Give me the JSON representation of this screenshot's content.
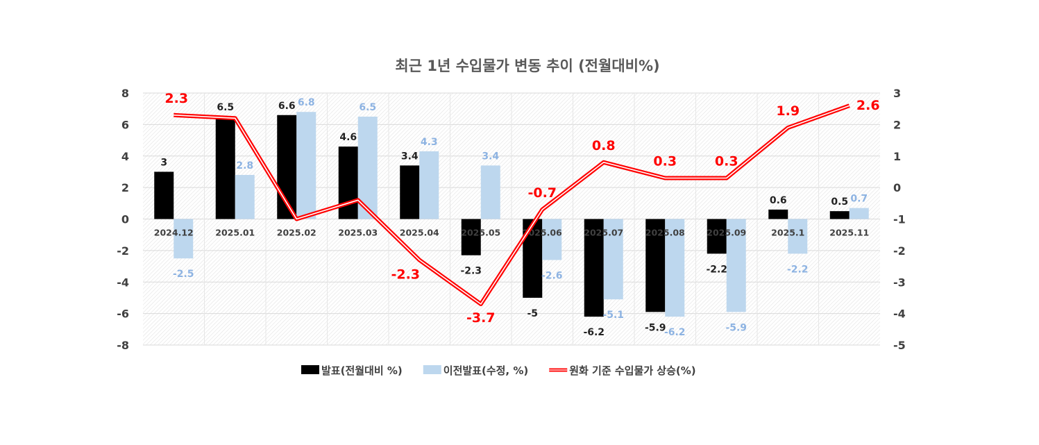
{
  "chart_data": {
    "type": "bar+line",
    "title": "최근 1년 수입물가 변동 추이 (전월대비%)",
    "categories": [
      "2024.12",
      "2025.01",
      "2025.02",
      "2025.03",
      "2025.04",
      "2025.05",
      "2025.06",
      "2025.07",
      "2025.08",
      "2025.09",
      "2025.1",
      "2025.11"
    ],
    "series": [
      {
        "name": "발표(전월대비 %)",
        "type": "bar",
        "axis": "left",
        "color": "#000000",
        "label_color": "#222222",
        "values": [
          3,
          6.5,
          6.6,
          4.6,
          3.4,
          -2.3,
          -5,
          -6.2,
          -5.9,
          -2.2,
          0.6,
          0.5
        ]
      },
      {
        "name": "이전발표(수정, %)",
        "type": "bar",
        "axis": "left",
        "color": "#bdd7ee",
        "label_color": "#8db3e2",
        "values": [
          -2.5,
          2.8,
          6.8,
          6.5,
          4.3,
          3.4,
          -2.6,
          -5.1,
          -6.2,
          -5.9,
          -2.2,
          0.7
        ]
      },
      {
        "name": "원화 기준 수입물가 상승(%)",
        "type": "line",
        "axis": "right",
        "color": "#ff0000",
        "label_color": "#ff0000",
        "values": [
          2.3,
          2.2,
          -1,
          -0.4,
          -2.3,
          -3.7,
          -0.7,
          0.8,
          0.3,
          0.3,
          1.9,
          2.6
        ],
        "labeled_points": [
          0,
          4,
          5,
          6,
          7,
          8,
          9,
          10,
          11
        ]
      }
    ],
    "y_left": {
      "min": -8,
      "max": 8,
      "step": 2,
      "ticks": [
        "8",
        "6",
        "4",
        "2",
        "0",
        "-2",
        "-4",
        "-6",
        "-8"
      ]
    },
    "y_right": {
      "min": -5,
      "max": 3,
      "step": 1,
      "ticks": [
        "3",
        "2",
        "1",
        "0",
        "-1",
        "-2",
        "-3",
        "-4",
        "-5"
      ]
    },
    "legend_position": "bottom-center",
    "grid": true
  }
}
